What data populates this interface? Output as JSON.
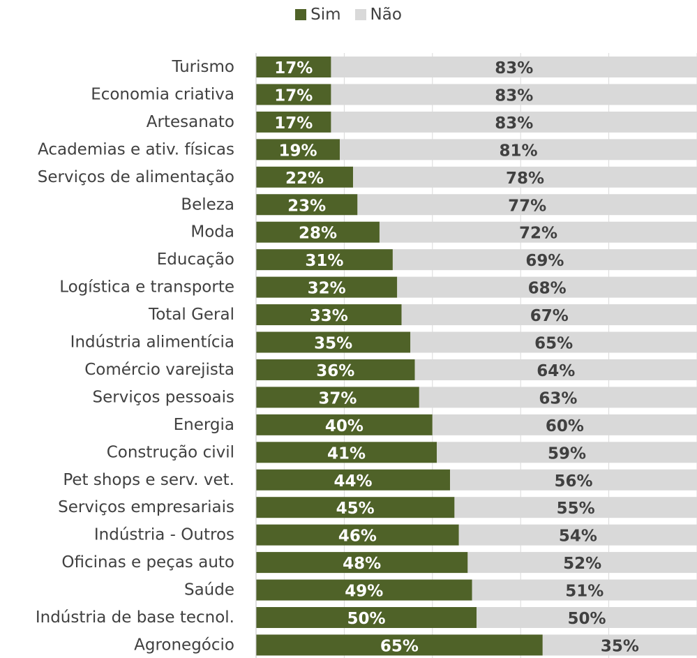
{
  "chart_data": {
    "type": "bar",
    "orientation": "horizontal",
    "stacked": true,
    "percent_stacked": true,
    "categories": [
      "Turismo",
      "Economia criativa",
      "Artesanato",
      "Academias e ativ. físicas",
      "Serviços de alimentação",
      "Beleza",
      "Moda",
      "Educação",
      "Logística e transporte",
      "Total Geral",
      "Indústria alimentícia",
      "Comércio varejista",
      "Serviços pessoais",
      "Energia",
      "Construção civil",
      "Pet shops e serv. vet.",
      "Serviços empresariais",
      "Indústria - Outros",
      "Oficinas e peças auto",
      "Saúde",
      "Indústria de base tecnol.",
      "Agronegócio"
    ],
    "series": [
      {
        "name": "Sim",
        "color": "#4f6228",
        "values": [
          17,
          17,
          17,
          19,
          22,
          23,
          28,
          31,
          32,
          33,
          35,
          36,
          37,
          40,
          41,
          44,
          45,
          46,
          48,
          49,
          50,
          65
        ]
      },
      {
        "name": "Não",
        "color": "#d9d9d9",
        "values": [
          83,
          83,
          83,
          81,
          78,
          77,
          72,
          69,
          68,
          67,
          65,
          64,
          63,
          60,
          59,
          56,
          55,
          54,
          52,
          51,
          50,
          35
        ]
      }
    ],
    "data_labels": [
      [
        "17%",
        "17%",
        "17%",
        "19%",
        "22%",
        "23%",
        "28%",
        "31%",
        "32%",
        "33%",
        "35%",
        "36%",
        "37%",
        "40%",
        "41%",
        "44%",
        "45%",
        "46%",
        "48%",
        "49%",
        "50%",
        "65%"
      ],
      [
        "83%",
        "83%",
        "83%",
        "81%",
        "78%",
        "77%",
        "72%",
        "69%",
        "68%",
        "67%",
        "65%",
        "64%",
        "63%",
        "60%",
        "59%",
        "56%",
        "55%",
        "54%",
        "52%",
        "51%",
        "50%",
        "35%"
      ]
    ],
    "xlim": [
      0,
      100
    ],
    "legend_position": "top-center",
    "grid": true,
    "label_colors": {
      "sim": "#ffffff",
      "nao": "#404040",
      "category": "#404040"
    }
  }
}
